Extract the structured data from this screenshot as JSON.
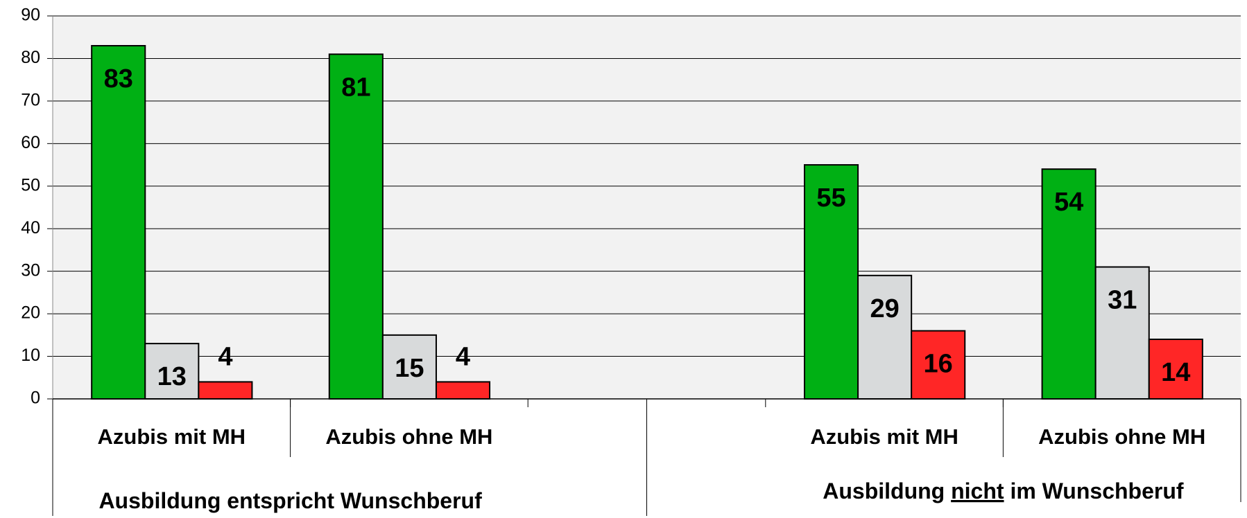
{
  "chart_data": {
    "type": "bar",
    "categories": [
      "Azubis mit MH",
      "Azubis ohne MH",
      null,
      "Azubis mit MH",
      "Azubis ohne MH"
    ],
    "series": [
      {
        "color": "#00b014",
        "values": [
          83,
          81,
          null,
          55,
          54
        ]
      },
      {
        "color": "#d8dadb",
        "values": [
          13,
          15,
          null,
          29,
          31
        ]
      },
      {
        "color": "#ff2626",
        "values": [
          4,
          4,
          null,
          16,
          14
        ]
      }
    ],
    "groups": [
      {
        "parts": [
          "Ausbildung entspricht Wunschberuf"
        ]
      },
      {
        "parts": [
          "Ausbildung",
          "nicht",
          "im Wunschberuf"
        ],
        "underline": 1
      }
    ],
    "ylim": [
      0,
      90
    ],
    "yticks": [
      0,
      10,
      20,
      30,
      40,
      50,
      60,
      70,
      80,
      90
    ],
    "grid": true
  }
}
